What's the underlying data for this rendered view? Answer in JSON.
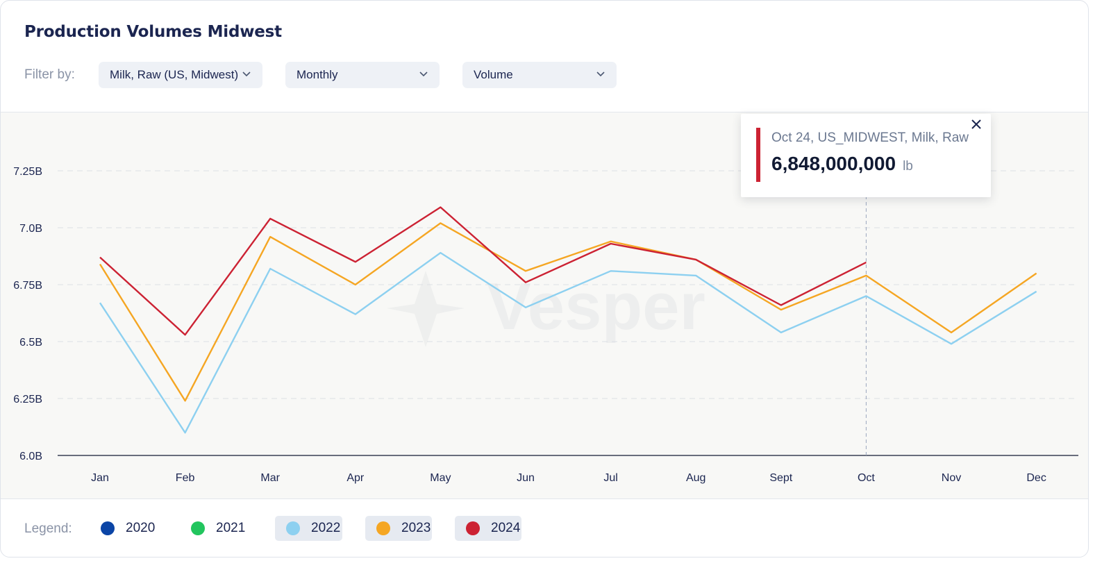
{
  "title": "Production Volumes Midwest",
  "filters": {
    "label": "Filter by:",
    "product": "Milk, Raw (US, Midwest)",
    "frequency": "Monthly",
    "metric": "Volume"
  },
  "tooltip": {
    "title": "Oct 24, US_MIDWEST, Milk, Raw",
    "value": "6,848,000,000",
    "unit": "lb",
    "color": "#cc2233"
  },
  "legend": {
    "label": "Legend:",
    "items": [
      {
        "name": "2020",
        "color": "#0b45a6",
        "active": false
      },
      {
        "name": "2021",
        "color": "#22c55e",
        "active": false
      },
      {
        "name": "2022",
        "color": "#8dd0f0",
        "active": true
      },
      {
        "name": "2023",
        "color": "#f5a623",
        "active": true
      },
      {
        "name": "2024",
        "color": "#cc2233",
        "active": true
      }
    ]
  },
  "watermark": "Vesper",
  "chart_data": {
    "type": "line",
    "categories": [
      "Jan",
      "Feb",
      "Mar",
      "Apr",
      "May",
      "Jun",
      "Jul",
      "Aug",
      "Sept",
      "Oct",
      "Nov",
      "Dec"
    ],
    "y_ticks": [
      "6.0B",
      "6.25B",
      "6.5B",
      "6.75B",
      "7.0B",
      "7.25B"
    ],
    "ylim": [
      6.0,
      7.4
    ],
    "y_unit": "billion lb",
    "grid": "horizontal dashed",
    "highlight_category": "Oct",
    "series": [
      {
        "name": "2022",
        "color": "#8dd0f0",
        "values": [
          6.67,
          6.1,
          6.82,
          6.62,
          6.89,
          6.65,
          6.81,
          6.79,
          6.54,
          6.7,
          6.49,
          6.72
        ]
      },
      {
        "name": "2023",
        "color": "#f5a623",
        "values": [
          6.84,
          6.24,
          6.96,
          6.75,
          7.02,
          6.81,
          6.94,
          6.86,
          6.64,
          6.79,
          6.54,
          6.8
        ]
      },
      {
        "name": "2024",
        "color": "#cc2233",
        "values": [
          6.87,
          6.53,
          7.04,
          6.85,
          7.09,
          6.76,
          6.93,
          6.86,
          6.66,
          6.848,
          null,
          null
        ]
      }
    ]
  }
}
